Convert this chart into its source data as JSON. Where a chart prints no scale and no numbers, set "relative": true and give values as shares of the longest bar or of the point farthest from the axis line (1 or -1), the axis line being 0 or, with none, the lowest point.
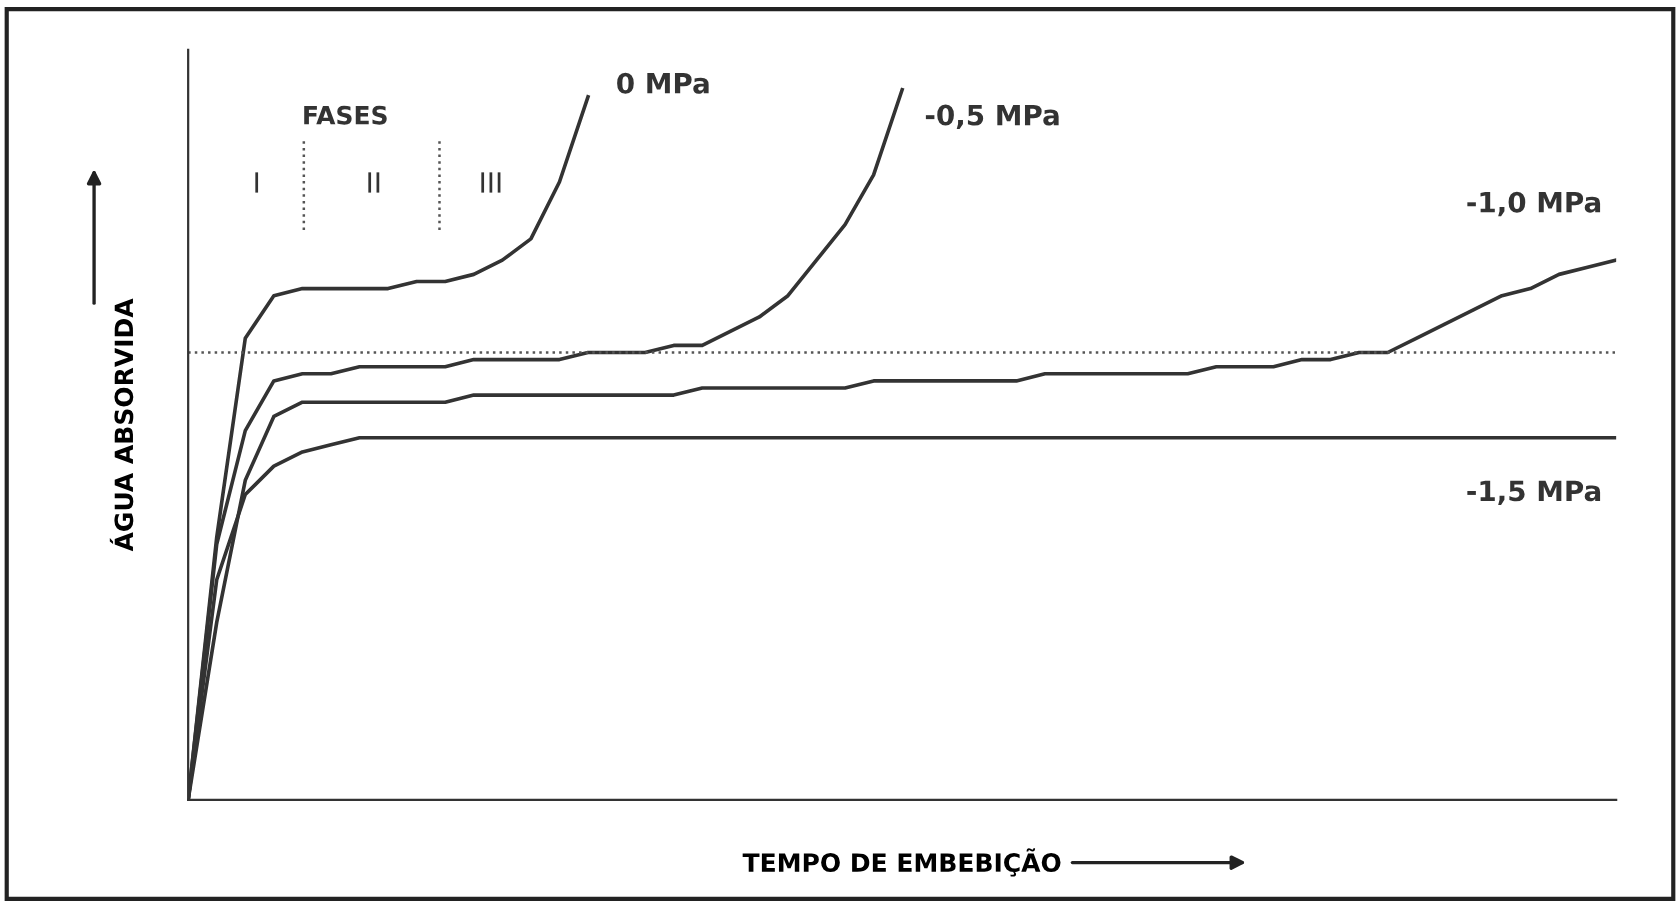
{
  "chart_data": {
    "type": "line",
    "relative": true,
    "xlabel": "TEMPO DE EMBEBIÇÃO",
    "ylabel": "ÁGUA ABSORVIDA",
    "legend": false,
    "line_style": "solid",
    "marker": "none",
    "categories": [
      null,
      null,
      null,
      null,
      null,
      null,
      null,
      null,
      null,
      null,
      null,
      null,
      null,
      null,
      null,
      null,
      null,
      null,
      null,
      null,
      null,
      null,
      null,
      null,
      null,
      null,
      null,
      null,
      null,
      null,
      null,
      null,
      null,
      null,
      null,
      null,
      null,
      null,
      null,
      null,
      null,
      null,
      null,
      null,
      null,
      null,
      null,
      null,
      null,
      null,
      null
    ],
    "series": [
      {
        "name": "0 MPa",
        "color": "#333333",
        "values": [
          0,
          0.37,
          0.65,
          0.71,
          0.72,
          0.72,
          0.72,
          0.72,
          0.73,
          0.73,
          0.74,
          0.76,
          0.79,
          0.87,
          0.99,
          null,
          null,
          null,
          null,
          null,
          null,
          null,
          null,
          null,
          null,
          null,
          null,
          null,
          null,
          null,
          null,
          null,
          null,
          null,
          null,
          null,
          null,
          null,
          null,
          null,
          null,
          null,
          null,
          null,
          null,
          null,
          null,
          null,
          null,
          null,
          null
        ]
      },
      {
        "name": "-0,5 MPa",
        "color": "#333333",
        "values": [
          0,
          0.36,
          0.52,
          0.59,
          0.6,
          0.6,
          0.61,
          0.61,
          0.61,
          0.61,
          0.62,
          0.62,
          0.62,
          0.62,
          0.63,
          0.63,
          0.63,
          0.64,
          0.64,
          0.66,
          0.68,
          0.71,
          0.76,
          0.81,
          0.88,
          1.0,
          null,
          null,
          null,
          null,
          null,
          null,
          null,
          null,
          null,
          null,
          null,
          null,
          null,
          null,
          null,
          null,
          null,
          null,
          null,
          null,
          null,
          null,
          null,
          null,
          null
        ]
      },
      {
        "name": "-1,0 MPa",
        "color": "#333333",
        "values": [
          0,
          0.25,
          0.45,
          0.54,
          0.56,
          0.56,
          0.56,
          0.56,
          0.56,
          0.56,
          0.57,
          0.57,
          0.57,
          0.57,
          0.57,
          0.57,
          0.57,
          0.57,
          0.58,
          0.58,
          0.58,
          0.58,
          0.58,
          0.58,
          0.59,
          0.59,
          0.59,
          0.59,
          0.59,
          0.59,
          0.6,
          0.6,
          0.6,
          0.6,
          0.6,
          0.6,
          0.61,
          0.61,
          0.61,
          0.62,
          0.62,
          0.63,
          0.63,
          0.65,
          0.67,
          0.69,
          0.71,
          0.72,
          0.74,
          0.75,
          0.76
        ]
      },
      {
        "name": "-1,5 MPa",
        "color": "#333333",
        "values": [
          0,
          0.31,
          0.43,
          0.47,
          0.49,
          0.5,
          0.51,
          0.51,
          0.51,
          0.51,
          0.51,
          0.51,
          0.51,
          0.51,
          0.51,
          0.51,
          0.51,
          0.51,
          0.51,
          0.51,
          0.51,
          0.51,
          0.51,
          0.51,
          0.51,
          0.51,
          0.51,
          0.51,
          0.51,
          0.51,
          0.51,
          0.51,
          0.51,
          0.51,
          0.51,
          0.51,
          0.51,
          0.51,
          0.51,
          0.51,
          0.51,
          0.51,
          0.51,
          0.51,
          0.51,
          0.51,
          0.51,
          0.51,
          0.51,
          0.51,
          0.51
        ]
      }
    ],
    "ref_lines": [
      {
        "axis": "y",
        "value": 0.63,
        "color": "#555555",
        "line_style": "dotted"
      }
    ],
    "annotations": [
      "FASES",
      "I",
      "II",
      "III"
    ]
  }
}
